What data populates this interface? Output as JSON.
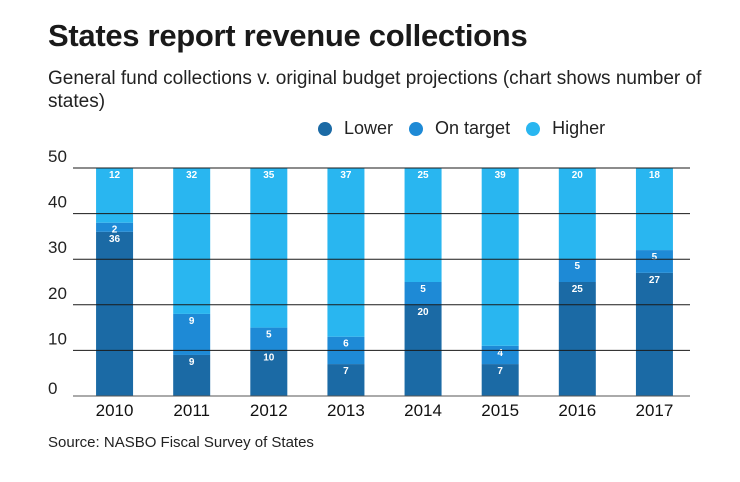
{
  "chart_data": {
    "type": "bar",
    "stacked": true,
    "title": "States report revenue collections",
    "subtitle": "General fund collections v. original budget projections (chart shows number of states)",
    "categories": [
      "2010",
      "2011",
      "2012",
      "2013",
      "2014",
      "2015",
      "2016",
      "2017"
    ],
    "series": [
      {
        "name": "Lower",
        "color": "#1b6aa5",
        "values": [
          36,
          9,
          10,
          7,
          20,
          7,
          25,
          27
        ]
      },
      {
        "name": "On target",
        "color": "#1e8ad6",
        "values": [
          2,
          9,
          5,
          6,
          5,
          4,
          5,
          5
        ]
      },
      {
        "name": "Higher",
        "color": "#29b6f0",
        "values": [
          12,
          32,
          35,
          37,
          25,
          39,
          20,
          18
        ]
      }
    ],
    "ylim": [
      0,
      50
    ],
    "yticks": [
      "0",
      "10",
      "20",
      "30",
      "40",
      "50"
    ],
    "xlabel": "",
    "ylabel": "",
    "grid": true,
    "legend_position": "top"
  },
  "source": "Source: NASBO Fiscal Survey of States"
}
